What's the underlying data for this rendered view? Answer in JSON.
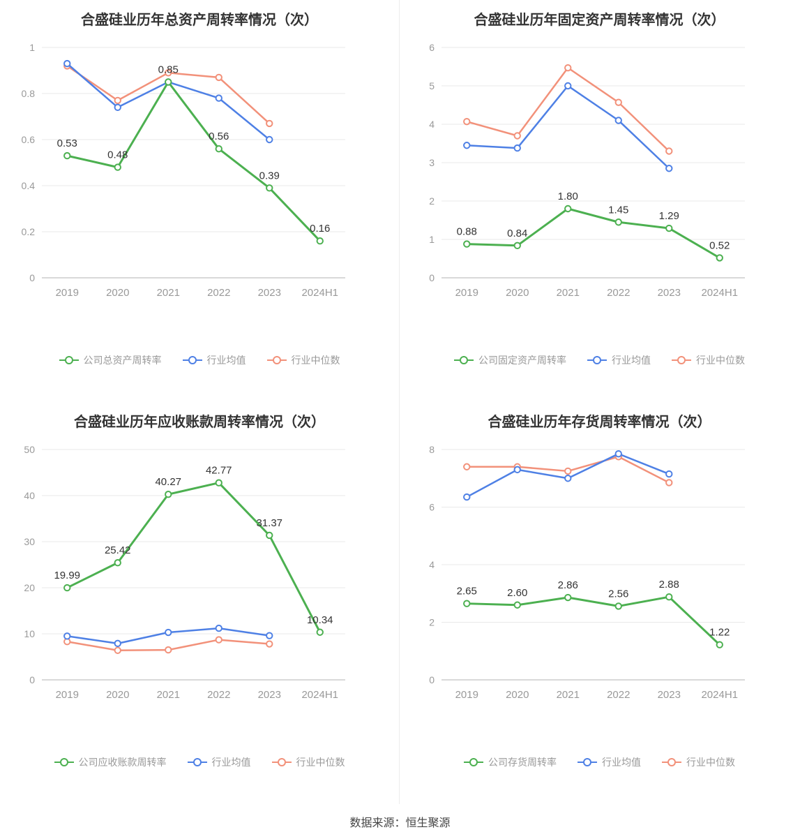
{
  "footer": {
    "source": "数据来源：恒生聚源"
  },
  "chart_data": [
    {
      "type": "line",
      "title": "合盛硅业历年总资产周转率情况（次）",
      "categories": [
        "2019",
        "2020",
        "2021",
        "2022",
        "2023",
        "2024H1"
      ],
      "ylim": [
        0,
        1
      ],
      "yticks": [
        0,
        0.2,
        0.4,
        0.6,
        0.8,
        1
      ],
      "legend_position": "bottom",
      "grid": true,
      "series": [
        {
          "name": "公司总资产周转率",
          "color": "#4CB050",
          "values": [
            0.53,
            0.48,
            0.85,
            0.56,
            0.39,
            0.16
          ],
          "labels": [
            "0.53",
            "0.48",
            "0.85",
            "0.56",
            "0.39",
            "0.16"
          ]
        },
        {
          "name": "行业均值",
          "color": "#4E80E5",
          "values": [
            0.93,
            0.74,
            0.85,
            0.78,
            0.6,
            null
          ]
        },
        {
          "name": "行业中位数",
          "color": "#F2917A",
          "values": [
            0.92,
            0.77,
            0.89,
            0.87,
            0.67,
            null
          ]
        }
      ]
    },
    {
      "type": "line",
      "title": "合盛硅业历年固定资产周转率情况（次）",
      "categories": [
        "2019",
        "2020",
        "2021",
        "2022",
        "2023",
        "2024H1"
      ],
      "ylim": [
        0,
        6
      ],
      "yticks": [
        0,
        1,
        2,
        3,
        4,
        5,
        6
      ],
      "legend_position": "bottom",
      "grid": true,
      "series": [
        {
          "name": "公司固定资产周转率",
          "color": "#4CB050",
          "values": [
            0.88,
            0.84,
            1.8,
            1.45,
            1.29,
            0.52
          ],
          "labels": [
            "0.88",
            "0.84",
            "1.80",
            "1.45",
            "1.29",
            "0.52"
          ]
        },
        {
          "name": "行业均值",
          "color": "#4E80E5",
          "values": [
            3.45,
            3.38,
            5.0,
            4.1,
            2.85,
            null
          ]
        },
        {
          "name": "行业中位数",
          "color": "#F2917A",
          "values": [
            4.07,
            3.7,
            5.47,
            4.57,
            3.3,
            null
          ]
        }
      ]
    },
    {
      "type": "line",
      "title": "合盛硅业历年应收账款周转率情况（次）",
      "categories": [
        "2019",
        "2020",
        "2021",
        "2022",
        "2023",
        "2024H1"
      ],
      "ylim": [
        0,
        50
      ],
      "yticks": [
        0,
        10,
        20,
        30,
        40,
        50
      ],
      "legend_position": "bottom",
      "grid": true,
      "series": [
        {
          "name": "公司应收账款周转率",
          "color": "#4CB050",
          "values": [
            19.99,
            25.42,
            40.27,
            42.77,
            31.37,
            10.34
          ],
          "labels": [
            "19.99",
            "25.42",
            "40.27",
            "42.77",
            "31.37",
            "10.34"
          ]
        },
        {
          "name": "行业均值",
          "color": "#4E80E5",
          "values": [
            9.5,
            7.9,
            10.3,
            11.2,
            9.6,
            null
          ]
        },
        {
          "name": "行业中位数",
          "color": "#F2917A",
          "values": [
            8.3,
            6.4,
            6.5,
            8.7,
            7.8,
            null
          ]
        }
      ]
    },
    {
      "type": "line",
      "title": "合盛硅业历年存货周转率情况（次）",
      "categories": [
        "2019",
        "2020",
        "2021",
        "2022",
        "2023",
        "2024H1"
      ],
      "ylim": [
        0,
        8
      ],
      "yticks": [
        0,
        2,
        4,
        6,
        8
      ],
      "legend_position": "bottom",
      "grid": true,
      "series": [
        {
          "name": "公司存货周转率",
          "color": "#4CB050",
          "values": [
            2.65,
            2.6,
            2.86,
            2.56,
            2.88,
            1.22
          ],
          "labels": [
            "2.65",
            "2.60",
            "2.86",
            "2.56",
            "2.88",
            "1.22"
          ]
        },
        {
          "name": "行业均值",
          "color": "#4E80E5",
          "values": [
            6.35,
            7.3,
            7.0,
            7.85,
            7.15,
            null
          ]
        },
        {
          "name": "行业中位数",
          "color": "#F2917A",
          "values": [
            7.4,
            7.4,
            7.25,
            7.75,
            6.85,
            null
          ]
        }
      ]
    }
  ]
}
